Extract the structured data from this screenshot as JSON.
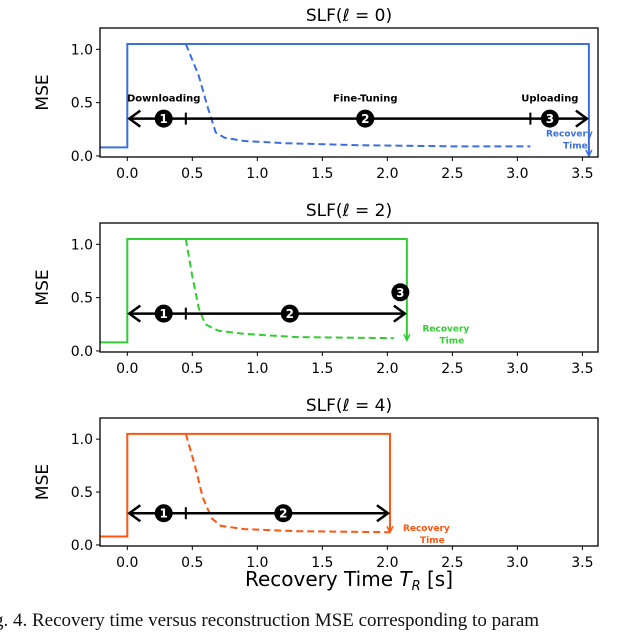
{
  "chart_data": [
    {
      "type": "line",
      "title": "SLF(ℓ = 0)",
      "ylabel": "MSE",
      "xlabel": "",
      "xlim": [
        -0.21,
        3.62
      ],
      "ylim": [
        -0.01,
        1.2
      ],
      "xticks": [
        "0.0",
        "0.5",
        "1.0",
        "1.5",
        "2.0",
        "2.5",
        "3.0",
        "3.5"
      ],
      "yticks": [
        "0.0",
        "0.5",
        "1.0"
      ],
      "color": "#3b6fe0",
      "solid": {
        "x": [
          -0.21,
          0,
          0,
          3.55,
          3.55
        ],
        "y": [
          0.08,
          0.08,
          1.05,
          1.05,
          0.0
        ]
      },
      "dashed": {
        "x": [
          0.45,
          0.55,
          0.62,
          0.68,
          0.75,
          0.9,
          1.2,
          1.8,
          2.5,
          3.1
        ],
        "y": [
          1.05,
          0.75,
          0.45,
          0.22,
          0.17,
          0.14,
          0.12,
          0.1,
          0.09,
          0.09
        ]
      },
      "phase_y": 0.35,
      "arrow_end": 3.55,
      "phase_ticks": [
        0.45,
        3.1
      ],
      "phases": [
        {
          "num": "1",
          "x": 0.28,
          "y": 0.35,
          "label": "Downloading"
        },
        {
          "num": "2",
          "x": 1.83,
          "y": 0.35,
          "label": "Fine-Tuning"
        },
        {
          "num": "3",
          "x": 3.25,
          "y": 0.35,
          "label": "Uploading"
        }
      ],
      "annotation": {
        "line1": "Recovery",
        "line2": "Time",
        "x": 3.4
      }
    },
    {
      "type": "line",
      "title": "SLF(ℓ = 2)",
      "ylabel": "MSE",
      "xlabel": "",
      "xlim": [
        -0.21,
        3.62
      ],
      "ylim": [
        -0.01,
        1.2
      ],
      "xticks": [
        "0.0",
        "0.5",
        "1.0",
        "1.5",
        "2.0",
        "2.5",
        "3.0",
        "3.5"
      ],
      "yticks": [
        "0.0",
        "0.5",
        "1.0"
      ],
      "color": "#33cc33",
      "solid": {
        "x": [
          -0.21,
          0,
          0,
          2.15,
          2.15
        ],
        "y": [
          0.08,
          0.08,
          1.05,
          1.05,
          0.1
        ]
      },
      "dashed": {
        "x": [
          0.45,
          0.5,
          0.55,
          0.6,
          0.7,
          0.9,
          1.3,
          2.05
        ],
        "y": [
          1.05,
          0.7,
          0.4,
          0.25,
          0.19,
          0.16,
          0.13,
          0.12
        ]
      },
      "phase_y": 0.35,
      "arrow_end": 2.15,
      "phase_ticks": [
        0.45
      ],
      "phases": [
        {
          "num": "1",
          "x": 0.28,
          "y": 0.35,
          "label": ""
        },
        {
          "num": "2",
          "x": 1.25,
          "y": 0.35,
          "label": ""
        },
        {
          "num": "3",
          "x": 2.1,
          "y": 0.55,
          "label": ""
        }
      ],
      "annotation": {
        "line1": "Recovery",
        "line2": "Time",
        "x": 2.45
      }
    },
    {
      "type": "line",
      "title": "SLF(ℓ = 4)",
      "ylabel": "MSE",
      "xlabel": "Recovery Time T_R [s]",
      "xlim": [
        -0.21,
        3.62
      ],
      "ylim": [
        -0.01,
        1.2
      ],
      "xticks": [
        "0.0",
        "0.5",
        "1.0",
        "1.5",
        "2.0",
        "2.5",
        "3.0",
        "3.5"
      ],
      "yticks": [
        "0.0",
        "0.5",
        "1.0"
      ],
      "color": "#ff5511",
      "solid": {
        "x": [
          -0.21,
          0,
          0,
          2.02,
          2.02
        ],
        "y": [
          0.08,
          0.08,
          1.05,
          1.05,
          0.12
        ]
      },
      "dashed": {
        "x": [
          0.45,
          0.52,
          0.58,
          0.65,
          0.72,
          0.9,
          1.3,
          2.02
        ],
        "y": [
          1.05,
          0.75,
          0.45,
          0.25,
          0.18,
          0.15,
          0.13,
          0.12
        ]
      },
      "phase_y": 0.3,
      "arrow_end": 2.02,
      "phase_ticks": [
        0.45
      ],
      "phases": [
        {
          "num": "1",
          "x": 0.28,
          "y": 0.3,
          "label": ""
        },
        {
          "num": "2",
          "x": 1.2,
          "y": 0.3,
          "label": ""
        }
      ],
      "annotation": {
        "line1": "Recovery",
        "line2": "Time",
        "x": 2.3
      }
    }
  ],
  "xlabel_main": "Recovery Time",
  "xlabel_sym": "T",
  "xlabel_sub": "R",
  "xlabel_unit": "[s]",
  "caption": "g. 4.  Recovery time versus reconstruction MSE corresponding to param"
}
